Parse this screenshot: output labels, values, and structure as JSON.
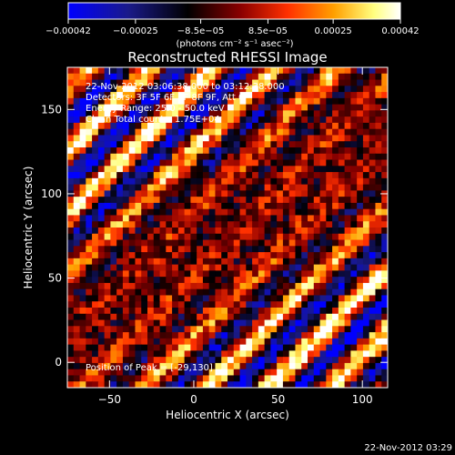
{
  "chart_data": {
    "type": "heatmap",
    "title": "Reconstructed RHESSI Image",
    "xlabel": "Heliocentric X (arcsec)",
    "ylabel": "Heliocentric Y (arcsec)",
    "xlim": [
      -75,
      115
    ],
    "ylim": [
      -15,
      175
    ],
    "x_ticks": [
      -50,
      0,
      50,
      100
    ],
    "x_tick_labels": [
      "−50",
      "0",
      "50",
      "100"
    ],
    "y_ticks": [
      0,
      50,
      100,
      150
    ],
    "y_tick_labels": [
      "0",
      "50",
      "100",
      "150"
    ],
    "grid": false,
    "colorbar": {
      "position": "top",
      "range": [
        -0.00042,
        0.00042
      ],
      "ticks": [
        -0.00042,
        -0.00025,
        -8.5e-05,
        8.5e-05,
        0.00025,
        0.00042
      ],
      "tick_labels": [
        "−0.00042",
        "−0.00025",
        "−8.5e−05",
        "8.5e−05",
        "0.00025",
        "0.00042"
      ],
      "unit_label": "(photons cm⁻² s⁻¹ asec⁻²)",
      "colors": [
        "#0000ff",
        "#1a1a8a",
        "#000000",
        "#8b0000",
        "#ff3000",
        "#ffa000",
        "#ffff80",
        "#ffffff"
      ]
    },
    "annotations": [
      "22-Nov-2012 03:06:38.000 to 03:12:38.000",
      "Detectors: 3F 5F 6F 7F 8F 9F, Att 0",
      "Energy Range: 25.0 - 50.0 keV",
      "Clean    Total counts: 1.75E+04"
    ],
    "peak_label": "Position of Peak = [-29,130]",
    "pattern": {
      "description": "diagonal striped clean residual pattern",
      "grid_cells": 52,
      "stripe_slope": 1.0
    }
  },
  "footer": {
    "timestamp": "22-Nov-2012 03:29"
  }
}
